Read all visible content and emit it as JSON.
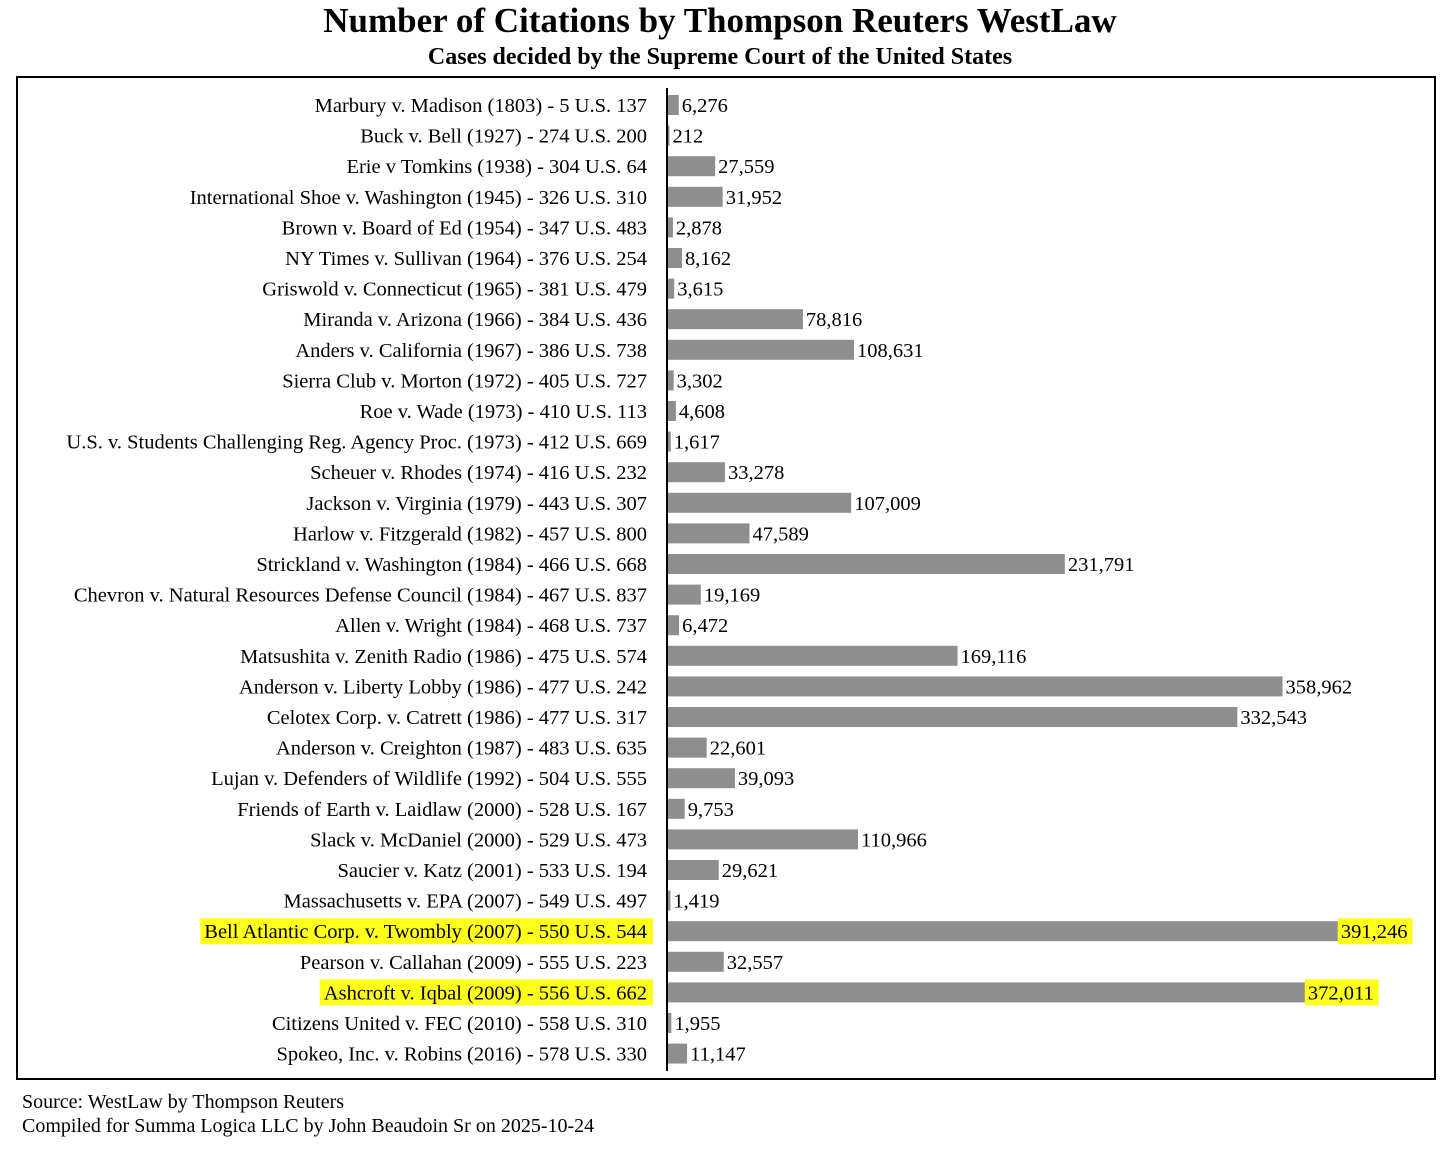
{
  "chart_data": {
    "type": "bar",
    "orientation": "horizontal",
    "title": "Number of Citations by Thompson Reuters WestLaw",
    "subtitle": "Cases decided by the Supreme Court of the United States",
    "xlabel": "",
    "ylabel": "",
    "xlim": [
      0,
      400000
    ],
    "grid": false,
    "bar_color": "#8e8e8e",
    "highlight_color": "#ffff1a",
    "categories": [
      "Marbury v. Madison (1803) - 5 U.S. 137",
      "Buck v. Bell (1927) - 274 U.S. 200",
      "Erie v Tomkins (1938) - 304 U.S. 64",
      "International Shoe v. Washington (1945) - 326 U.S. 310",
      "Brown v. Board of Ed (1954) - 347 U.S. 483",
      "NY Times v. Sullivan (1964) - 376 U.S. 254",
      "Griswold v. Connecticut (1965) - 381 U.S. 479",
      "Miranda v. Arizona (1966) - 384 U.S. 436",
      "Anders v. California (1967) - 386 U.S. 738",
      "Sierra Club v. Morton (1972) - 405 U.S. 727",
      "Roe v. Wade (1973) - 410 U.S. 113",
      "U.S. v. Students Challenging Reg. Agency Proc. (1973) - 412 U.S. 669",
      "Scheuer v. Rhodes (1974) - 416 U.S. 232",
      "Jackson v. Virginia (1979) - 443 U.S. 307",
      "Harlow v. Fitzgerald (1982) - 457 U.S. 800",
      "Strickland v. Washington (1984) - 466 U.S. 668",
      "Chevron v. Natural Resources Defense Council (1984) - 467 U.S. 837",
      "Allen v. Wright (1984) - 468 U.S. 737",
      "Matsushita v. Zenith Radio (1986) - 475 U.S. 574",
      "Anderson v. Liberty Lobby (1986) - 477 U.S. 242",
      "Celotex Corp. v. Catrett (1986) - 477 U.S. 317",
      "Anderson v. Creighton (1987) - 483 U.S. 635",
      "Lujan v. Defenders of Wildlife (1992) - 504 U.S. 555",
      "Friends of Earth v. Laidlaw (2000) - 528 U.S. 167",
      "Slack v. McDaniel (2000) - 529 U.S. 473",
      "Saucier v. Katz (2001) - 533 U.S. 194",
      "Massachusetts v. EPA (2007) - 549 U.S. 497",
      "Bell Atlantic Corp. v. Twombly (2007) - 550 U.S. 544",
      "Pearson v. Callahan (2009) - 555 U.S. 223",
      "Ashcroft v. Iqbal (2009) - 556 U.S. 662",
      "Citizens United v. FEC (2010) - 558 U.S. 310",
      "Spokeo, Inc. v. Robins (2016) - 578 U.S. 330"
    ],
    "values": [
      6276,
      212,
      27559,
      31952,
      2878,
      8162,
      3615,
      78816,
      108631,
      3302,
      4608,
      1617,
      33278,
      107009,
      47589,
      231791,
      19169,
      6472,
      169116,
      358962,
      332543,
      22601,
      39093,
      9753,
      110966,
      29621,
      1419,
      391246,
      32557,
      372011,
      1955,
      11147
    ],
    "value_labels": [
      "6,276",
      "212",
      "27,559",
      "31,952",
      "2,878",
      "8,162",
      "3,615",
      "78,816",
      "108,631",
      "3,302",
      "4,608",
      "1,617",
      "33,278",
      "107,009",
      "47,589",
      "231,791",
      "19,169",
      "6,472",
      "169,116",
      "358,962",
      "332,543",
      "22,601",
      "39,093",
      "9,753",
      "110,966",
      "29,621",
      "1,419",
      "391,246",
      "32,557",
      "372,011",
      "1,955",
      "11,147"
    ],
    "highlighted": [
      "Bell Atlantic Corp. v. Twombly (2007) - 550 U.S. 544",
      "Ashcroft v. Iqbal (2009) - 556 U.S. 662"
    ]
  },
  "footer": {
    "source": "Source: WestLaw by Thompson Reuters",
    "compiled": "Compiled for Summa Logica LLC by John Beaudoin Sr on 2025-10-24"
  }
}
